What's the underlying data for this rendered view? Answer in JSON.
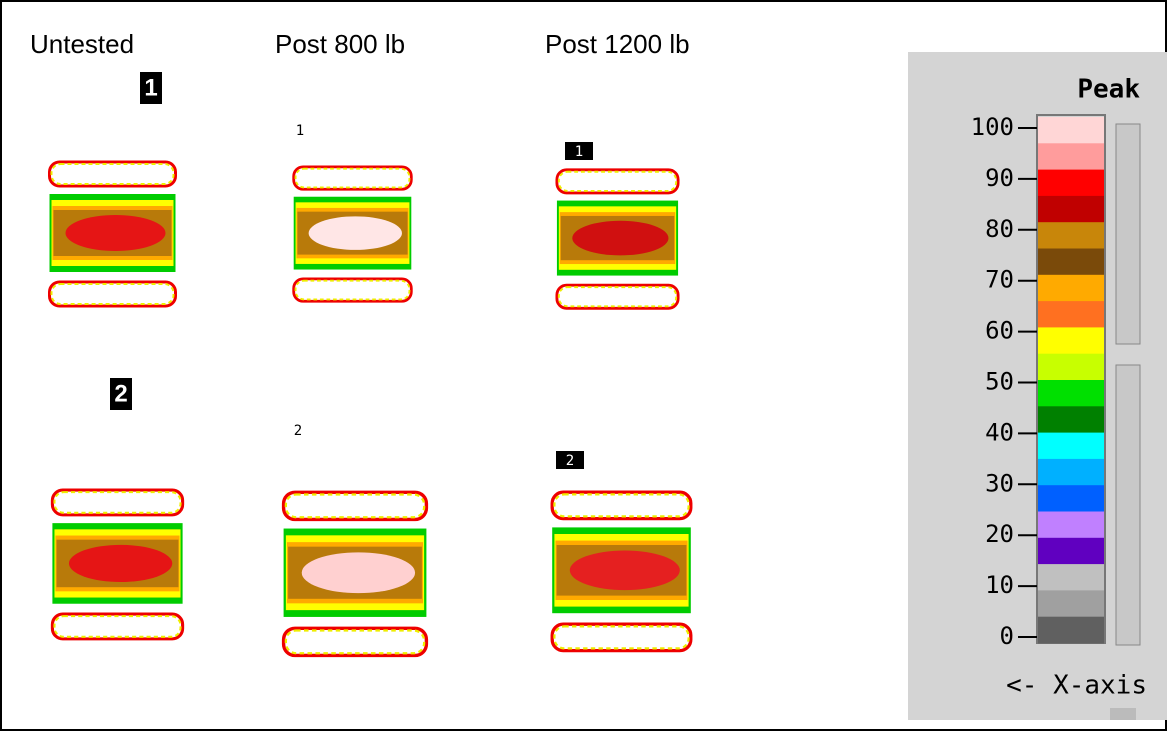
{
  "columns": [
    "Untested",
    "Post 800 lb",
    "Post 1200 lb"
  ],
  "panel_labels": [
    [
      "1",
      "2"
    ],
    [
      "1",
      "2"
    ],
    [
      "1",
      "2"
    ]
  ],
  "legend": {
    "title": "Peak",
    "ticks": [
      100,
      90,
      80,
      70,
      60,
      50,
      40,
      30,
      20,
      10,
      0
    ],
    "axis_label": "<- X-axis"
  }
}
